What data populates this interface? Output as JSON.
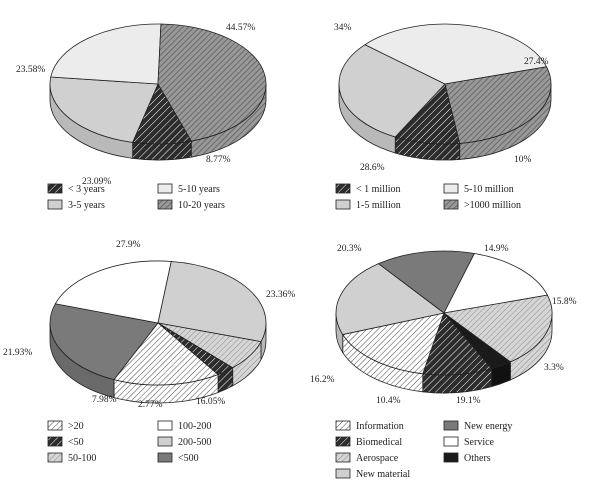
{
  "colors": {
    "dark_hatch": "#3a3a3a",
    "light_gray": "#d0d0d0",
    "lighter_gray": "#ececec",
    "mid_hatch": "#8a8a8a",
    "mid_gray": "#7a7a7a",
    "white": "#ffffff",
    "black": "#1a1a1a",
    "stroke": "#222222"
  },
  "chart_data": [
    {
      "type": "pie",
      "title": "",
      "categories": [
        "< 3 years",
        "3-5 years",
        "5-10 years",
        "10-20 years"
      ],
      "values": [
        8.77,
        23.09,
        23.58,
        44.57
      ],
      "labels": [
        "8.77%",
        "23.09%",
        "23.58%",
        "44.57%"
      ],
      "legend": {
        "entries": [
          "< 3 years",
          "5-10 years",
          "3-5 years",
          "10-20 years"
        ],
        "placement": "bottom"
      },
      "fills": [
        "dark_hatch",
        "light_gray",
        "lighter_gray",
        "mid_hatch"
      ]
    },
    {
      "type": "pie",
      "title": "",
      "categories": [
        "< 1 million",
        "1-5 million",
        "5-10 million",
        ">1000 million"
      ],
      "values": [
        10,
        28.6,
        34,
        27.4
      ],
      "labels": [
        "10%",
        "28.6%",
        "34%",
        "27.4%"
      ],
      "legend": {
        "entries": [
          "< 1 million",
          "5-10 million",
          "1-5 million",
          ">1000 million"
        ],
        "placement": "bottom"
      },
      "fills": [
        "dark_hatch",
        "light_gray",
        "lighter_gray",
        "mid_hatch"
      ]
    },
    {
      "type": "pie",
      "title": "",
      "categories": [
        "<500",
        "100-200",
        "200-500",
        "50-100",
        "<50",
        ">20"
      ],
      "values": [
        23.36,
        21.93,
        27.9,
        7.98,
        2.77,
        16.05
      ],
      "labels": [
        "23.36%",
        "21.93%",
        "27.9%",
        "7.98%",
        "2.77%",
        "16.05%"
      ],
      "legend": {
        "entries": [
          ">20",
          "100-200",
          "<50",
          "200-500",
          "50-100",
          "<500"
        ],
        "placement": "bottom"
      },
      "fills": [
        "mid_gray",
        "white",
        "light_gray",
        "light_hatch",
        "dark_hatch",
        "white_hatch"
      ]
    },
    {
      "type": "pie",
      "title": "",
      "categories": [
        "Others",
        "Biomedical",
        "Information",
        "New material",
        "New energy",
        "Service",
        "Aerospace"
      ],
      "values": [
        3.3,
        10.4,
        16.2,
        20.3,
        14.9,
        15.8,
        19.1
      ],
      "labels": [
        "3.3%",
        "10.4%",
        "16.2%",
        "20.3%",
        "14.9%",
        "15.8%",
        "19.1%"
      ],
      "legend": {
        "entries": [
          "Information",
          "New energy",
          "Biomedical",
          "Service",
          "Aerospace",
          "Others",
          "New material"
        ],
        "placement": "bottom"
      },
      "fills": [
        "black",
        "dark_hatch",
        "white_hatch",
        "light_gray",
        "mid_gray",
        "white",
        "light_hatch"
      ]
    }
  ]
}
